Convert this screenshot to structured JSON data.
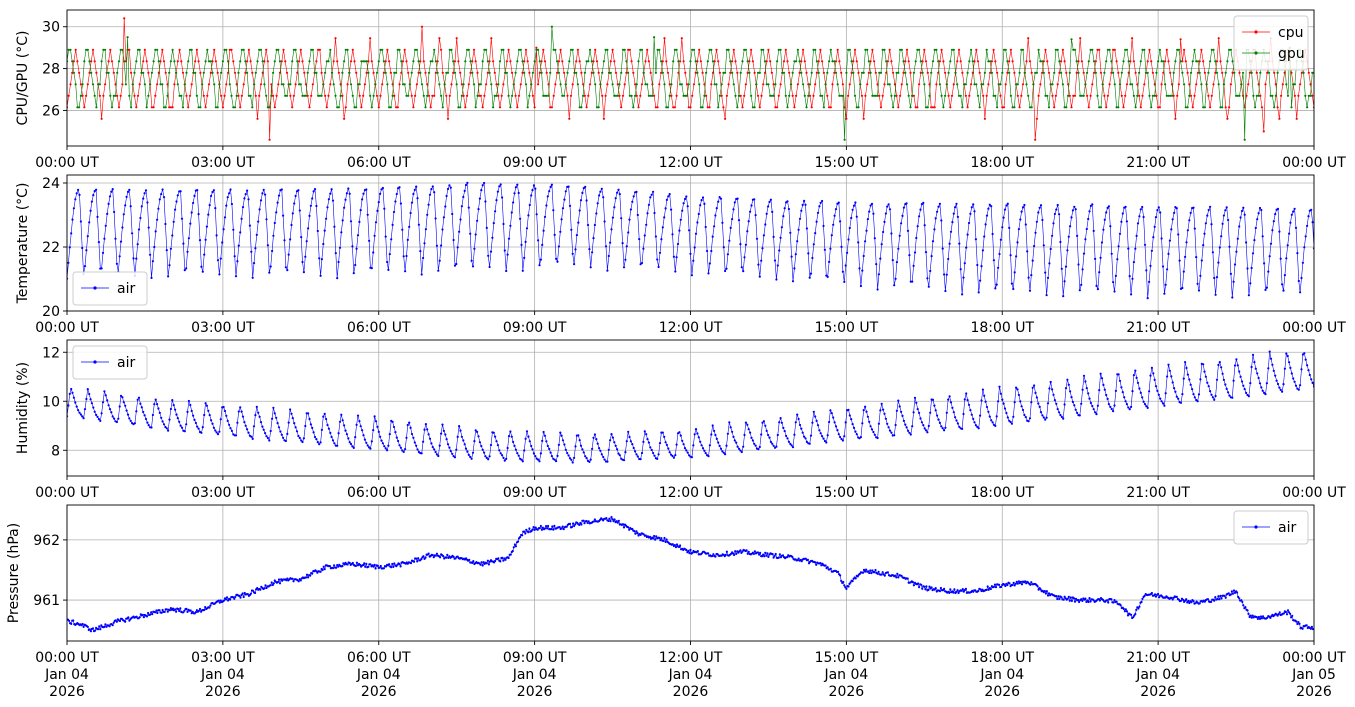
{
  "chart_data": [
    {
      "type": "line",
      "ylabel": "CPU/GPU (°C)",
      "ylim": [
        24.3,
        30.8
      ],
      "y_ticks": [
        {
          "value": 26,
          "label": "26"
        },
        {
          "value": 28,
          "label": "28"
        },
        {
          "value": 30,
          "label": "30"
        }
      ],
      "x_tick_labels": [
        "00:00 UT",
        "03:00 UT",
        "06:00 UT",
        "09:00 UT",
        "12:00 UT",
        "15:00 UT",
        "18:00 UT",
        "21:00 UT",
        "00:00 UT"
      ],
      "grid": true,
      "legend": "top-right",
      "series": [
        {
          "name": "cpu",
          "color": "#ff0000",
          "pattern": "cpu_gpu_cycle",
          "base": 27.2,
          "amplitude": 1.5,
          "period_min": 20,
          "phase": 0.0,
          "quantum": 0.55,
          "noise": 0.25,
          "spikes": [
            [
              65,
              30.4
            ],
            [
              409,
              30.0
            ],
            [
              542,
              29.0
            ],
            [
              1285,
              29.4
            ],
            [
              233,
              24.6
            ],
            [
              1118,
              24.6
            ],
            [
              1381,
              25.0
            ]
          ]
        },
        {
          "name": "gpu",
          "color": "#008000",
          "pattern": "cpu_gpu_cycle",
          "base": 27.3,
          "amplitude": 1.5,
          "period_min": 20,
          "phase": 0.35,
          "quantum": 0.55,
          "noise": 0.2,
          "spikes": [
            [
              70,
              29.5
            ],
            [
              559,
              30.0
            ],
            [
              678,
              29.5
            ],
            [
              1160,
              29.4
            ],
            [
              1411,
              29.0
            ],
            [
              898,
              24.6
            ],
            [
              1360,
              24.6
            ]
          ]
        }
      ]
    },
    {
      "type": "line",
      "ylabel": "Temperature (°C)",
      "ylim": [
        20.0,
        24.25
      ],
      "y_ticks": [
        {
          "value": 20,
          "label": "20"
        },
        {
          "value": 22,
          "label": "22"
        },
        {
          "value": 24,
          "label": "24"
        }
      ],
      "x_tick_labels": [
        "00:00 UT",
        "03:00 UT",
        "06:00 UT",
        "09:00 UT",
        "12:00 UT",
        "15:00 UT",
        "18:00 UT",
        "21:00 UT",
        "00:00 UT"
      ],
      "grid": true,
      "legend": "lower-left",
      "series": [
        {
          "name": "air",
          "color": "#0000ff",
          "pattern": "sawtooth",
          "period_min": 19.5,
          "low_knots": [
            [
              0,
              21.0
            ],
            [
              300,
              21.0
            ],
            [
              600,
              21.3
            ],
            [
              780,
              21.0
            ],
            [
              1020,
              20.5
            ],
            [
              1200,
              20.4
            ],
            [
              1440,
              20.4
            ]
          ],
          "high_knots": [
            [
              0,
              23.8
            ],
            [
              300,
              23.8
            ],
            [
              480,
              24.0
            ],
            [
              600,
              23.9
            ],
            [
              720,
              23.6
            ],
            [
              900,
              23.4
            ],
            [
              1200,
              23.3
            ],
            [
              1440,
              23.2
            ]
          ]
        }
      ]
    },
    {
      "type": "line",
      "ylabel": "Humidity (%)",
      "ylim": [
        6.95,
        12.5
      ],
      "y_ticks": [
        {
          "value": 8,
          "label": "8"
        },
        {
          "value": 10,
          "label": "10"
        },
        {
          "value": 12,
          "label": "12"
        }
      ],
      "x_tick_labels": [
        "00:00 UT",
        "03:00 UT",
        "06:00 UT",
        "09:00 UT",
        "12:00 UT",
        "15:00 UT",
        "18:00 UT",
        "21:00 UT",
        "00:00 UT"
      ],
      "grid": true,
      "legend": "top-left",
      "series": [
        {
          "name": "air",
          "color": "#0000ff",
          "pattern": "sawtooth_inverted",
          "period_min": 19.5,
          "low_knots": [
            [
              0,
              9.4
            ],
            [
              120,
              8.8
            ],
            [
              300,
              8.2
            ],
            [
              480,
              7.6
            ],
            [
              600,
              7.5
            ],
            [
              720,
              7.7
            ],
            [
              900,
              8.4
            ],
            [
              1080,
              9.0
            ],
            [
              1260,
              9.8
            ],
            [
              1440,
              10.5
            ]
          ],
          "high_knots": [
            [
              0,
              10.6
            ],
            [
              120,
              10.1
            ],
            [
              300,
              9.6
            ],
            [
              480,
              8.9
            ],
            [
              600,
              8.7
            ],
            [
              720,
              8.9
            ],
            [
              900,
              9.8
            ],
            [
              1080,
              10.6
            ],
            [
              1260,
              11.5
            ],
            [
              1440,
              12.2
            ]
          ]
        }
      ]
    },
    {
      "type": "line",
      "ylabel": "Pressure (hPa)",
      "ylim": [
        960.32,
        962.58
      ],
      "y_ticks": [
        {
          "value": 961,
          "label": "961"
        },
        {
          "value": 962,
          "label": "962"
        }
      ],
      "x_tick_labels": [
        "00:00 UT",
        "03:00 UT",
        "06:00 UT",
        "09:00 UT",
        "12:00 UT",
        "15:00 UT",
        "18:00 UT",
        "21:00 UT",
        "00:00 UT"
      ],
      "x_tick_sublabels": [
        "Jan 04",
        "Jan 04",
        "Jan 04",
        "Jan 04",
        "Jan 04",
        "Jan 04",
        "Jan 04",
        "Jan 04",
        "Jan 05"
      ],
      "x_tick_years": [
        "2026",
        "2026",
        "2026",
        "2026",
        "2026",
        "2026",
        "2026",
        "2026",
        "2026"
      ],
      "grid": true,
      "legend": "top-right",
      "series": [
        {
          "name": "air",
          "color": "#0000ff",
          "pattern": "smooth",
          "noise": 0.035,
          "knots": [
            [
              0,
              960.65
            ],
            [
              15,
              960.6
            ],
            [
              30,
              960.5
            ],
            [
              60,
              960.65
            ],
            [
              90,
              960.75
            ],
            [
              120,
              960.85
            ],
            [
              150,
              960.8
            ],
            [
              180,
              961.0
            ],
            [
              210,
              961.1
            ],
            [
              240,
              961.3
            ],
            [
              270,
              961.35
            ],
            [
              300,
              961.55
            ],
            [
              330,
              961.6
            ],
            [
              360,
              961.55
            ],
            [
              390,
              961.6
            ],
            [
              420,
              961.75
            ],
            [
              450,
              961.7
            ],
            [
              480,
              961.6
            ],
            [
              510,
              961.7
            ],
            [
              525,
              962.1
            ],
            [
              540,
              962.2
            ],
            [
              570,
              962.2
            ],
            [
              600,
              962.3
            ],
            [
              630,
              962.35
            ],
            [
              660,
              962.1
            ],
            [
              690,
              962.0
            ],
            [
              720,
              961.8
            ],
            [
              750,
              961.75
            ],
            [
              780,
              961.8
            ],
            [
              810,
              961.75
            ],
            [
              840,
              961.7
            ],
            [
              870,
              961.6
            ],
            [
              890,
              961.45
            ],
            [
              900,
              961.2
            ],
            [
              920,
              961.5
            ],
            [
              960,
              961.4
            ],
            [
              990,
              961.2
            ],
            [
              1020,
              961.15
            ],
            [
              1050,
              961.15
            ],
            [
              1080,
              961.25
            ],
            [
              1110,
              961.3
            ],
            [
              1140,
              961.05
            ],
            [
              1170,
              961.0
            ],
            [
              1200,
              961.0
            ],
            [
              1215,
              960.95
            ],
            [
              1230,
              960.7
            ],
            [
              1245,
              961.1
            ],
            [
              1275,
              961.05
            ],
            [
              1305,
              960.95
            ],
            [
              1335,
              961.05
            ],
            [
              1350,
              961.15
            ],
            [
              1365,
              960.75
            ],
            [
              1380,
              960.7
            ],
            [
              1410,
              960.8
            ],
            [
              1425,
              960.55
            ],
            [
              1440,
              960.55
            ]
          ]
        }
      ]
    }
  ]
}
